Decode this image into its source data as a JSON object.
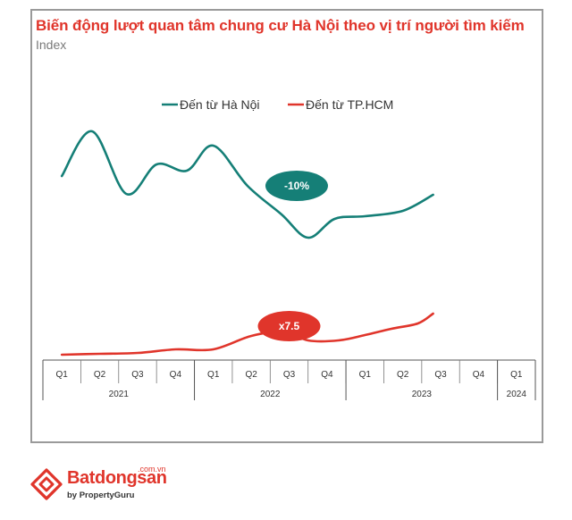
{
  "chart_data": {
    "type": "line",
    "title": "Biến động lượt quan tâm chung cư Hà Nội theo vị trí người tìm kiếm",
    "subtitle": "Index",
    "quarters": [
      "Q1",
      "Q2",
      "Q3",
      "Q4",
      "Q1",
      "Q2",
      "Q3",
      "Q4",
      "Q1",
      "Q2",
      "Q3",
      "Q4",
      "Q1"
    ],
    "years": [
      {
        "label": "2021",
        "span": 4
      },
      {
        "label": "2022",
        "span": 4
      },
      {
        "label": "2023",
        "span": 4
      },
      {
        "label": "2024",
        "span": 1
      }
    ],
    "series": [
      {
        "name": "Đến từ Hà Nội",
        "color": "#157f77",
        "points": [
          [
            0,
            197
          ],
          [
            0.8,
            147
          ],
          [
            1.7,
            217
          ],
          [
            2.5,
            184
          ],
          [
            3.3,
            191
          ],
          [
            4.0,
            163
          ],
          [
            4.9,
            208
          ],
          [
            5.8,
            240
          ],
          [
            6.5,
            266
          ],
          [
            7.2,
            245
          ],
          [
            8.0,
            242
          ],
          [
            9.0,
            236
          ],
          [
            9.8,
            218
          ]
        ]
      },
      {
        "name": "Đến từ TP.HCM",
        "color": "#e0352b",
        "points": [
          [
            0,
            397
          ],
          [
            1,
            396
          ],
          [
            2,
            395
          ],
          [
            3,
            391
          ],
          [
            4,
            391
          ],
          [
            5,
            376
          ],
          [
            5.9,
            371
          ],
          [
            6.5,
            381
          ],
          [
            7.3,
            381
          ],
          [
            8.0,
            375
          ],
          [
            8.7,
            368
          ],
          [
            9.4,
            362
          ],
          [
            9.8,
            351
          ]
        ]
      }
    ],
    "annotations": [
      {
        "text": "-10%",
        "color": "#157f77"
      },
      {
        "text": "x7.5",
        "color": "#e0352b"
      }
    ],
    "legend": "top-center",
    "grid": false
  },
  "logo": {
    "name": "Batdongsan",
    "domain": ".com.vn",
    "tagline": "by PropertyGuru",
    "color": "#e0352b"
  }
}
